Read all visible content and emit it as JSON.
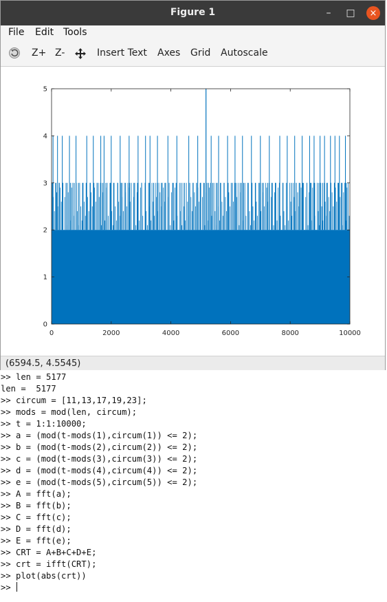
{
  "window": {
    "title": "Figure 1",
    "minimize": "–",
    "maximize": "□",
    "close": "×"
  },
  "menu": [
    {
      "label": "File"
    },
    {
      "label": "Edit"
    },
    {
      "label": "Tools"
    }
  ],
  "toolbar": {
    "rotate_icon": "rotate-icon",
    "zoom_in": "Z+",
    "zoom_out": "Z-",
    "pan_icon": "pan-icon",
    "insert_text": "Insert Text",
    "axes": "Axes",
    "grid": "Grid",
    "autoscale": "Autoscale"
  },
  "status": {
    "coords": "(6594.5, 4.5545)"
  },
  "colors": {
    "series": "#0072bd",
    "titlebar": "#3a3a3a",
    "close": "#e95420"
  },
  "chart_data": {
    "type": "line",
    "title": "",
    "xlabel": "",
    "ylabel": "",
    "xlim": [
      0,
      10000
    ],
    "ylim": [
      0,
      5
    ],
    "x_ticks": [
      0,
      2000,
      4000,
      6000,
      8000,
      10000
    ],
    "y_ticks": [
      0,
      1,
      2,
      3,
      4,
      5
    ],
    "grid": false,
    "series": [
      {
        "description": "dense signal abs(crt), t = 1..10000",
        "baseline_range": [
          0,
          2
        ],
        "values_to_3_approx_x": [
          30,
          150,
          260,
          380,
          520,
          640,
          760,
          900,
          1040,
          1160,
          1300,
          1420,
          1560,
          1700,
          1820,
          1960,
          2080,
          2220,
          2360,
          2480,
          2620,
          2760,
          2880,
          3020,
          3140,
          3280,
          3420,
          3540,
          3680,
          3800,
          3940,
          4080,
          4200,
          4340,
          4460,
          4600,
          4740,
          4860,
          5000,
          5120,
          5260,
          5400,
          5520,
          5660,
          5780,
          5920,
          6060,
          6180,
          6320,
          6440,
          6580,
          6720,
          6840,
          6980,
          7100,
          7240,
          7380,
          7500,
          7640,
          7760,
          7900,
          8040,
          8160,
          8300,
          8420,
          8560,
          8700,
          8820,
          8960,
          9080,
          9220,
          9360,
          9480,
          9620,
          9740,
          9880
        ],
        "values_to_4_approx_x": [
          50,
          200,
          360,
          600,
          820,
          1180,
          1400,
          1650,
          1760,
          2000,
          2300,
          2600,
          2900,
          3150,
          3300,
          3550,
          3900,
          4200,
          4600,
          4900,
          5350,
          5600,
          5900,
          6150,
          6400,
          6700,
          7000,
          7300,
          7650,
          7900,
          8150,
          8400,
          8650,
          8800,
          9000,
          9150,
          9350,
          9500,
          9650,
          9850
        ],
        "peak": {
          "x": 5177,
          "y": 5
        }
      }
    ]
  },
  "terminal": {
    "lines": [
      ">> len = 5177",
      "len =  5177",
      ">> circum = [11,13,17,19,23];",
      ">> mods = mod(len, circum);",
      ">> t = 1:1:10000;",
      ">> a = (mod(t-mods(1),circum(1)) <= 2);",
      ">> b = (mod(t-mods(2),circum(2)) <= 2);",
      ">> c = (mod(t-mods(3),circum(3)) <= 2);",
      ">> d = (mod(t-mods(4),circum(4)) <= 2);",
      ">> e = (mod(t-mods(5),circum(5)) <= 2);",
      ">> A = fft(a);",
      ">> B = fft(b);",
      ">> C = fft(c);",
      ">> D = fft(d);",
      ">> E = fft(e);",
      ">> CRT = A+B+C+D+E;",
      ">> crt = ifft(CRT);",
      ">> plot(abs(crt))",
      ">> "
    ]
  }
}
